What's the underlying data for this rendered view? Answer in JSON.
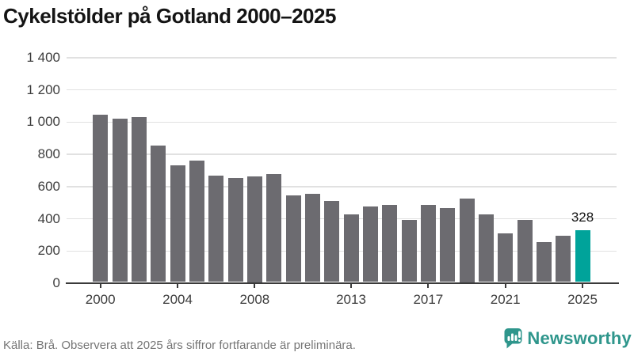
{
  "title": "Cykelstölder på Gotland 2000–2025",
  "source": "Källa: Brå. Observera att 2025 års siffror fortfarande är preliminära.",
  "logo": {
    "text": "Newsworthy",
    "icon": "newsworthy-speech-bubble-bar-chart-icon"
  },
  "colors": {
    "bar": "#6c6b70",
    "highlight": "#00a39a",
    "grid": "#e1e1e1",
    "axis": "#3a3a3a",
    "tick_text": "#3d3d3d",
    "title_text": "#141414",
    "source_text": "#757575",
    "logo_teal": "#2f968c",
    "background": "#ffffff"
  },
  "chart_data": {
    "type": "bar",
    "title": "Cykelstölder på Gotland 2000–2025",
    "x": [
      2000,
      2001,
      2002,
      2003,
      2004,
      2005,
      2006,
      2007,
      2008,
      2009,
      2010,
      2011,
      2012,
      2013,
      2014,
      2015,
      2016,
      2017,
      2018,
      2019,
      2020,
      2021,
      2022,
      2023,
      2024,
      2025
    ],
    "values": [
      1045,
      1020,
      1030,
      855,
      730,
      760,
      670,
      655,
      665,
      680,
      545,
      555,
      510,
      425,
      475,
      485,
      395,
      485,
      465,
      525,
      425,
      310,
      395,
      255,
      295,
      328
    ],
    "highlight_year": 2025,
    "highlight_label": "328",
    "y_ticks": [
      0,
      200,
      400,
      600,
      800,
      1000,
      1200,
      1400
    ],
    "y_tick_labels": [
      "0",
      "200",
      "400",
      "600",
      "800",
      "1 000",
      "1 200",
      "1 400"
    ],
    "x_tick_years": [
      2000,
      2004,
      2008,
      2013,
      2017,
      2021,
      2025
    ],
    "x_tick_labels": [
      "2000",
      "2004",
      "2008",
      "2013",
      "2017",
      "2021",
      "2025"
    ],
    "ylim": [
      0,
      1400
    ],
    "xlabel": "",
    "ylabel": "",
    "grid": true,
    "legend": false
  }
}
